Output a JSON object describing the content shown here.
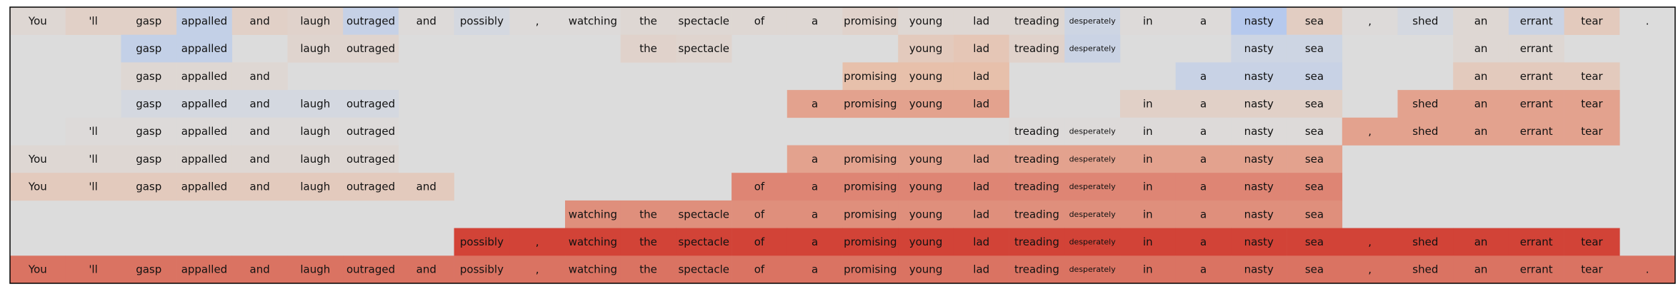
{
  "chart_data": {
    "type": "heatmap",
    "tokens": [
      "You",
      "'ll",
      "gasp",
      "appalled",
      "and",
      "laugh",
      "outraged",
      "and",
      "possibly",
      ",",
      "watching",
      "the",
      "spectacle",
      "of",
      "a",
      "promising",
      "young",
      "lad",
      "treading",
      "desperately",
      "in",
      "a",
      "nasty",
      "sea",
      ",",
      "shed",
      "an",
      "errant",
      "tear",
      "."
    ],
    "colorscale": {
      "negative": "#b4c8ee",
      "neutral": "#dcdcdc",
      "positive": "#d03a2e"
    },
    "rows": [
      [
        0.05,
        0.12,
        0.12,
        -0.25,
        0.12,
        0.1,
        -0.22,
        0.02,
        -0.08,
        0.02,
        0.02,
        0.05,
        0.05,
        0.05,
        0.05,
        0.1,
        0.05,
        0.05,
        0.05,
        -0.15,
        0.02,
        0.02,
        -0.38,
        0.15,
        0.02,
        -0.08,
        0.05,
        -0.18,
        0.18,
        0.0
      ],
      [
        null,
        null,
        -0.25,
        -0.25,
        null,
        0.08,
        0.08,
        null,
        null,
        null,
        null,
        0.1,
        0.08,
        null,
        null,
        null,
        0.18,
        0.22,
        0.1,
        -0.18,
        null,
        null,
        -0.15,
        -0.15,
        null,
        null,
        0.05,
        0.05,
        null,
        null
      ],
      [
        null,
        null,
        0.05,
        0.05,
        0.05,
        null,
        null,
        null,
        null,
        null,
        null,
        null,
        null,
        null,
        null,
        0.28,
        0.28,
        0.28,
        null,
        null,
        null,
        -0.2,
        -0.2,
        -0.2,
        null,
        null,
        0.18,
        0.18,
        0.18,
        null
      ],
      [
        null,
        null,
        -0.08,
        -0.08,
        -0.08,
        -0.08,
        -0.08,
        null,
        null,
        null,
        null,
        null,
        null,
        null,
        0.45,
        0.45,
        0.45,
        0.45,
        null,
        null,
        0.12,
        0.12,
        0.12,
        0.12,
        null,
        0.45,
        0.45,
        0.45,
        0.45,
        null
      ],
      [
        null,
        0.02,
        0.02,
        0.02,
        0.02,
        0.02,
        0.02,
        null,
        null,
        null,
        null,
        null,
        null,
        null,
        null,
        null,
        null,
        null,
        0.02,
        0.02,
        0.02,
        0.02,
        0.02,
        0.02,
        0.45,
        0.45,
        0.45,
        0.45,
        0.45,
        null
      ],
      [
        0.05,
        0.05,
        0.05,
        0.05,
        0.05,
        0.05,
        0.05,
        null,
        null,
        null,
        null,
        null,
        null,
        null,
        0.45,
        0.45,
        0.45,
        0.45,
        0.45,
        0.45,
        0.45,
        0.45,
        0.45,
        0.45,
        null,
        null,
        null,
        null,
        null,
        null
      ],
      [
        0.18,
        0.18,
        0.18,
        0.18,
        0.18,
        0.18,
        0.18,
        0.18,
        null,
        null,
        null,
        null,
        null,
        0.6,
        0.6,
        0.6,
        0.6,
        0.6,
        0.6,
        0.6,
        0.6,
        0.6,
        0.6,
        0.6,
        null,
        null,
        null,
        null,
        null,
        null
      ],
      [
        null,
        null,
        null,
        null,
        null,
        null,
        null,
        null,
        null,
        null,
        0.55,
        0.55,
        0.55,
        0.55,
        0.55,
        0.55,
        0.55,
        0.55,
        0.55,
        0.55,
        0.55,
        0.55,
        0.55,
        0.55,
        null,
        null,
        null,
        null,
        null,
        null
      ],
      [
        null,
        null,
        null,
        null,
        null,
        null,
        null,
        null,
        0.95,
        0.95,
        0.95,
        0.95,
        0.95,
        0.95,
        0.95,
        0.95,
        0.95,
        0.95,
        0.95,
        0.95,
        0.95,
        0.95,
        0.95,
        0.95,
        0.95,
        0.95,
        0.95,
        0.95,
        0.95,
        null
      ],
      [
        0.7,
        0.7,
        0.7,
        0.7,
        0.7,
        0.7,
        0.7,
        0.7,
        0.7,
        0.7,
        0.7,
        0.7,
        0.7,
        0.7,
        0.7,
        0.7,
        0.7,
        0.7,
        0.7,
        0.7,
        0.7,
        0.7,
        0.7,
        0.7,
        0.7,
        0.7,
        0.7,
        0.7,
        0.7,
        0.7
      ]
    ],
    "small_font_tokens": [
      "desperately"
    ]
  }
}
